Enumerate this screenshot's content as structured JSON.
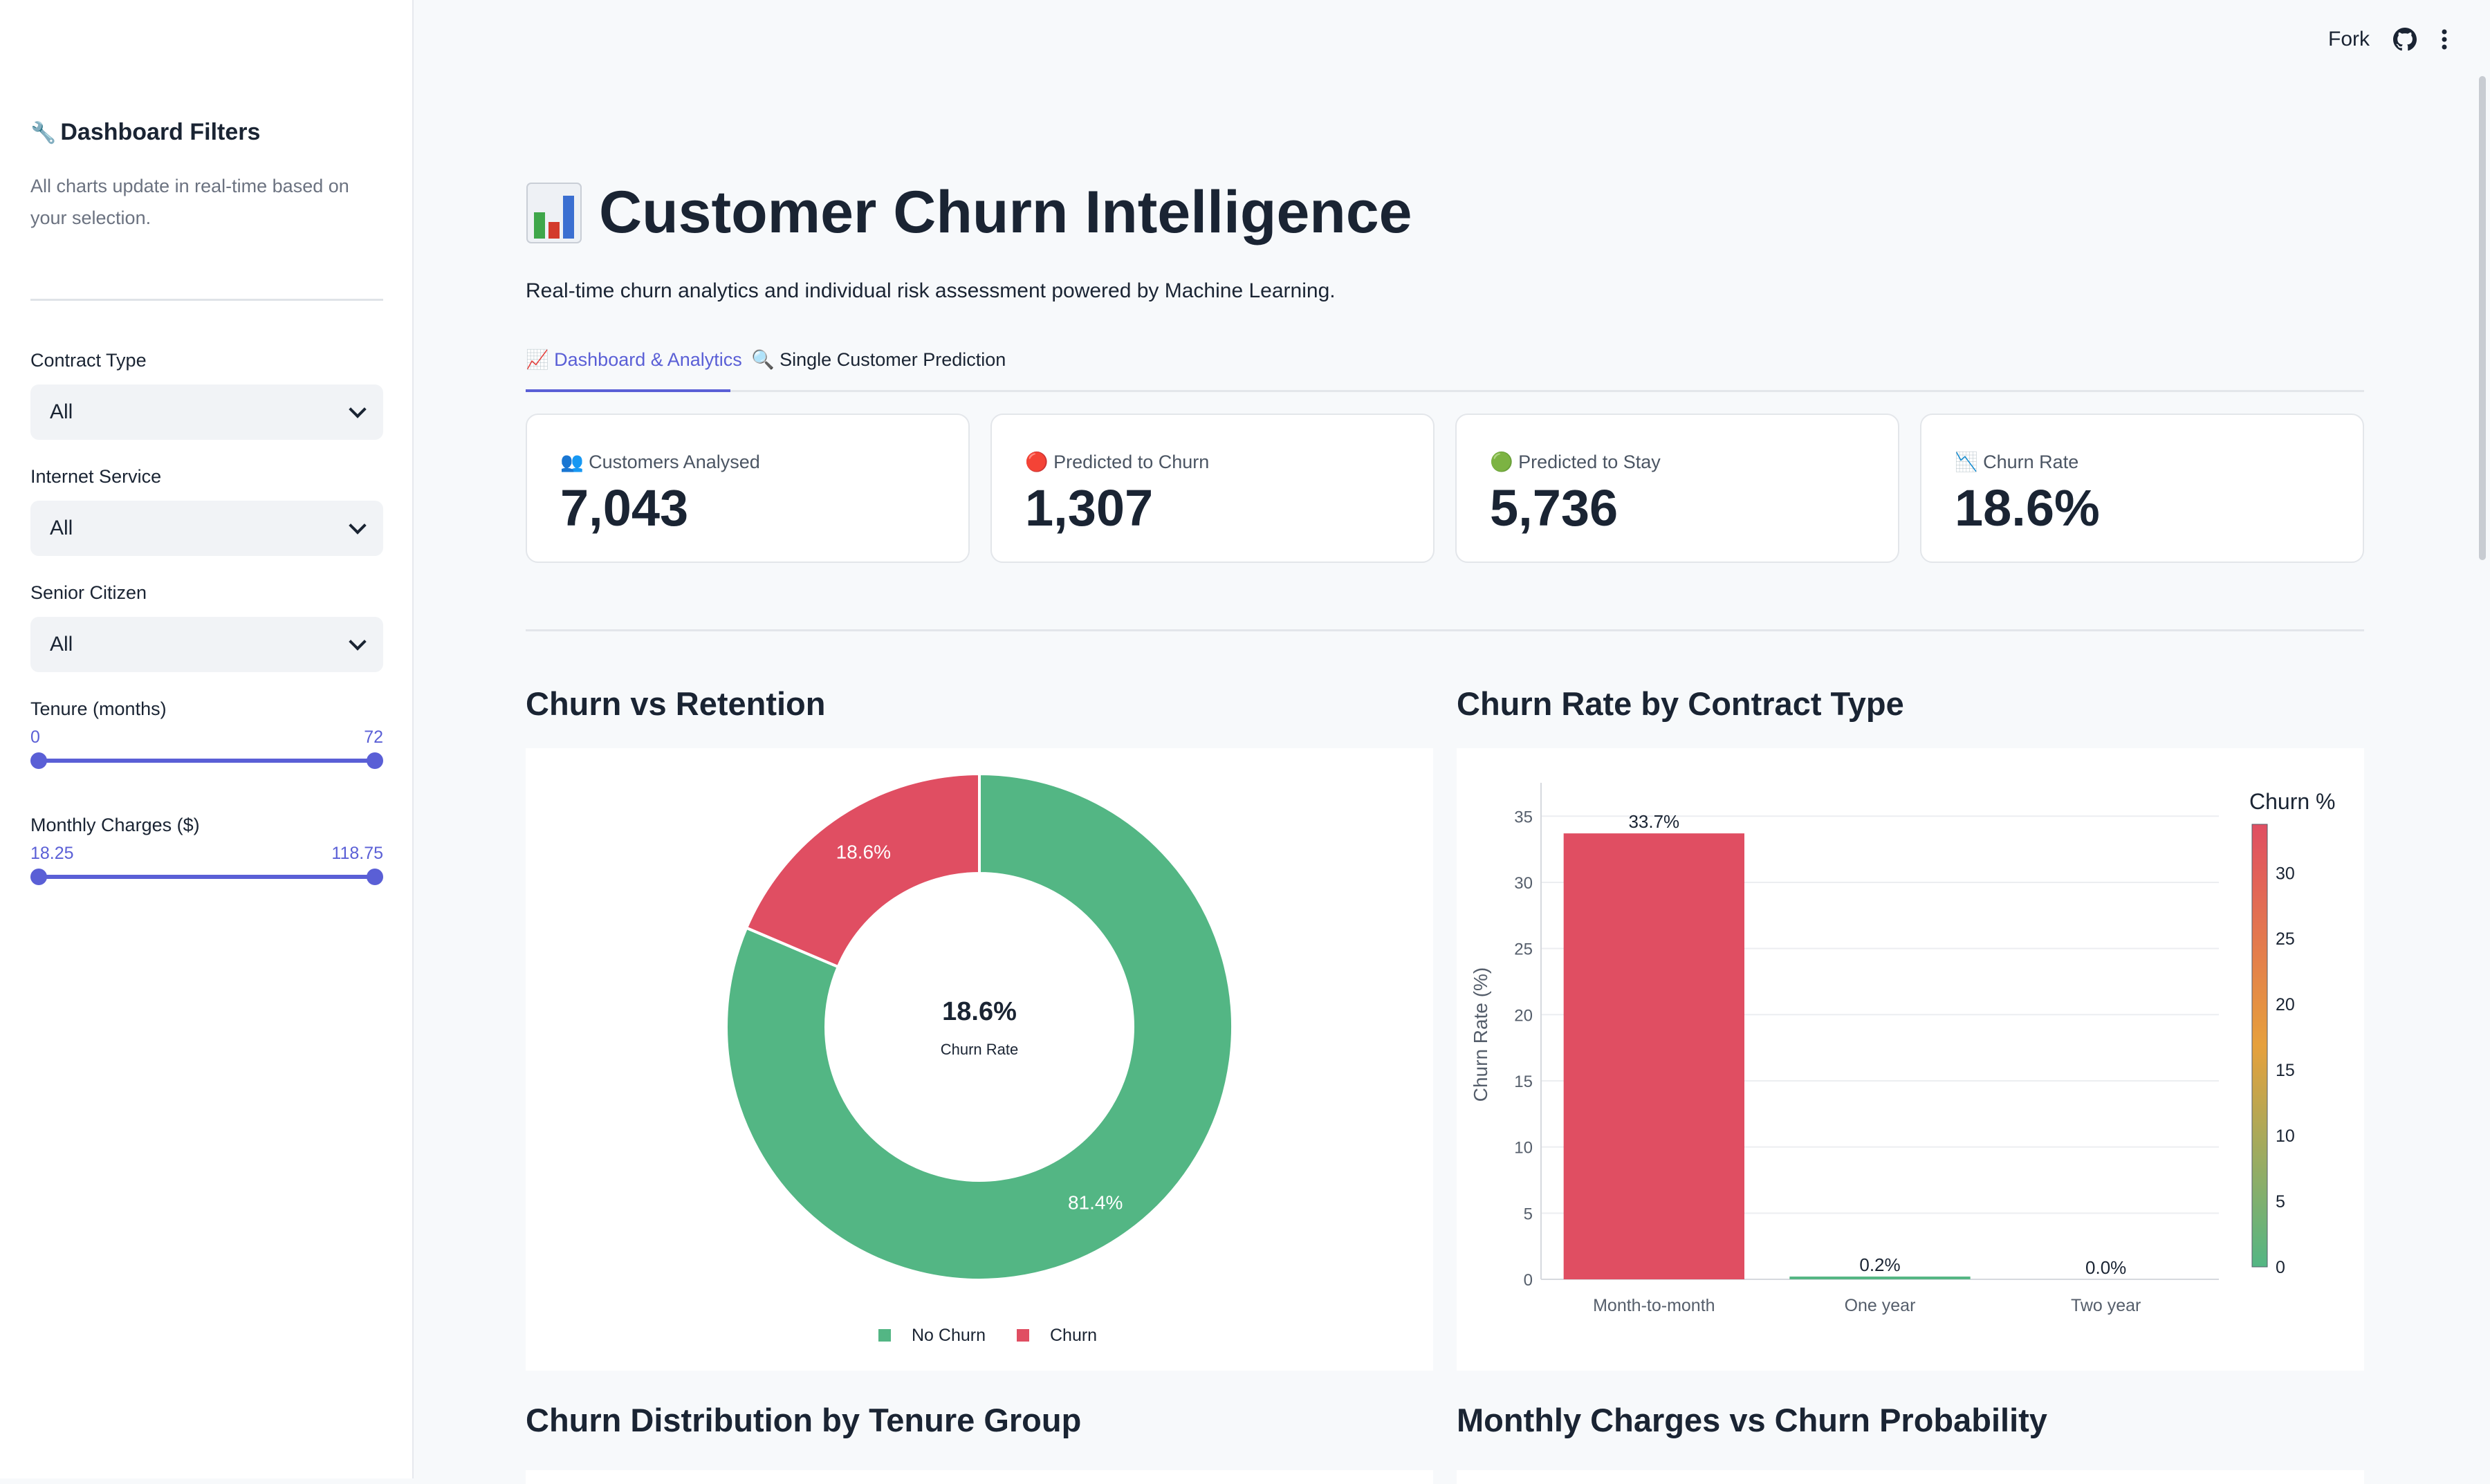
{
  "sidebar": {
    "title": "Dashboard Filters",
    "title_icon": "🔧",
    "description": "All charts update in real-time based on your selection.",
    "filters": {
      "contract": {
        "label": "Contract Type",
        "value": "All"
      },
      "internet": {
        "label": "Internet Service",
        "value": "All"
      },
      "senior": {
        "label": "Senior Citizen",
        "value": "All"
      }
    },
    "tenure": {
      "label": "Tenure (months)",
      "min": "0",
      "max": "72"
    },
    "charges": {
      "label": "Monthly Charges ($)",
      "min": "18.25",
      "max": "118.75"
    }
  },
  "topbar": {
    "fork_label": "Fork"
  },
  "header": {
    "title": "Customer Churn Intelligence",
    "subtitle": "Real-time churn analytics and individual risk assessment powered by Machine Learning."
  },
  "tabs": [
    {
      "label": "Dashboard & Analytics",
      "icon": "📈"
    },
    {
      "label": "Single Customer Prediction",
      "icon": "🔍"
    }
  ],
  "kpis": [
    {
      "label": "Customers Analysed",
      "icon": "👥",
      "value": "7,043"
    },
    {
      "label": "Predicted to Churn",
      "icon": "🔴",
      "value": "1,307"
    },
    {
      "label": "Predicted to Stay",
      "icon": "🟢",
      "value": "5,736"
    },
    {
      "label": "Churn Rate",
      "icon": "📉",
      "value": "18.6%"
    }
  ],
  "sections": {
    "donut": "Churn vs Retention",
    "bar": "Churn Rate by Contract Type",
    "tenure": "Churn Distribution by Tenure Group",
    "charges": "Monthly Charges vs Churn Probability"
  },
  "colors": {
    "churn": "#e04e62",
    "stay": "#53b684",
    "accent": "#5a5fd6"
  },
  "chart_data": [
    {
      "type": "pie",
      "title": "Churn vs Retention",
      "labels": [
        "No Churn",
        "Churn"
      ],
      "values": [
        81.4,
        18.6
      ],
      "value_labels": [
        "81.4%",
        "18.6%"
      ],
      "center_value": "18.6%",
      "center_label": "Churn Rate",
      "legend": "bottom"
    },
    {
      "type": "bar",
      "title": "Churn Rate by Contract Type",
      "categories": [
        "Month-to-month",
        "One year",
        "Two year"
      ],
      "values": [
        33.7,
        0.2,
        0.0
      ],
      "value_labels": [
        "33.7%",
        "0.2%",
        "0.0%"
      ],
      "ylabel": "Churn Rate (%)",
      "ylim": [
        0,
        37
      ],
      "yticks": [
        "0",
        "5",
        "10",
        "15",
        "20",
        "25",
        "30",
        "35"
      ],
      "grid": true,
      "colorbar": {
        "title": "Churn %",
        "ticks": [
          "0",
          "5",
          "10",
          "15",
          "20",
          "25",
          "30"
        ],
        "range": [
          0,
          33.7
        ]
      }
    }
  ]
}
